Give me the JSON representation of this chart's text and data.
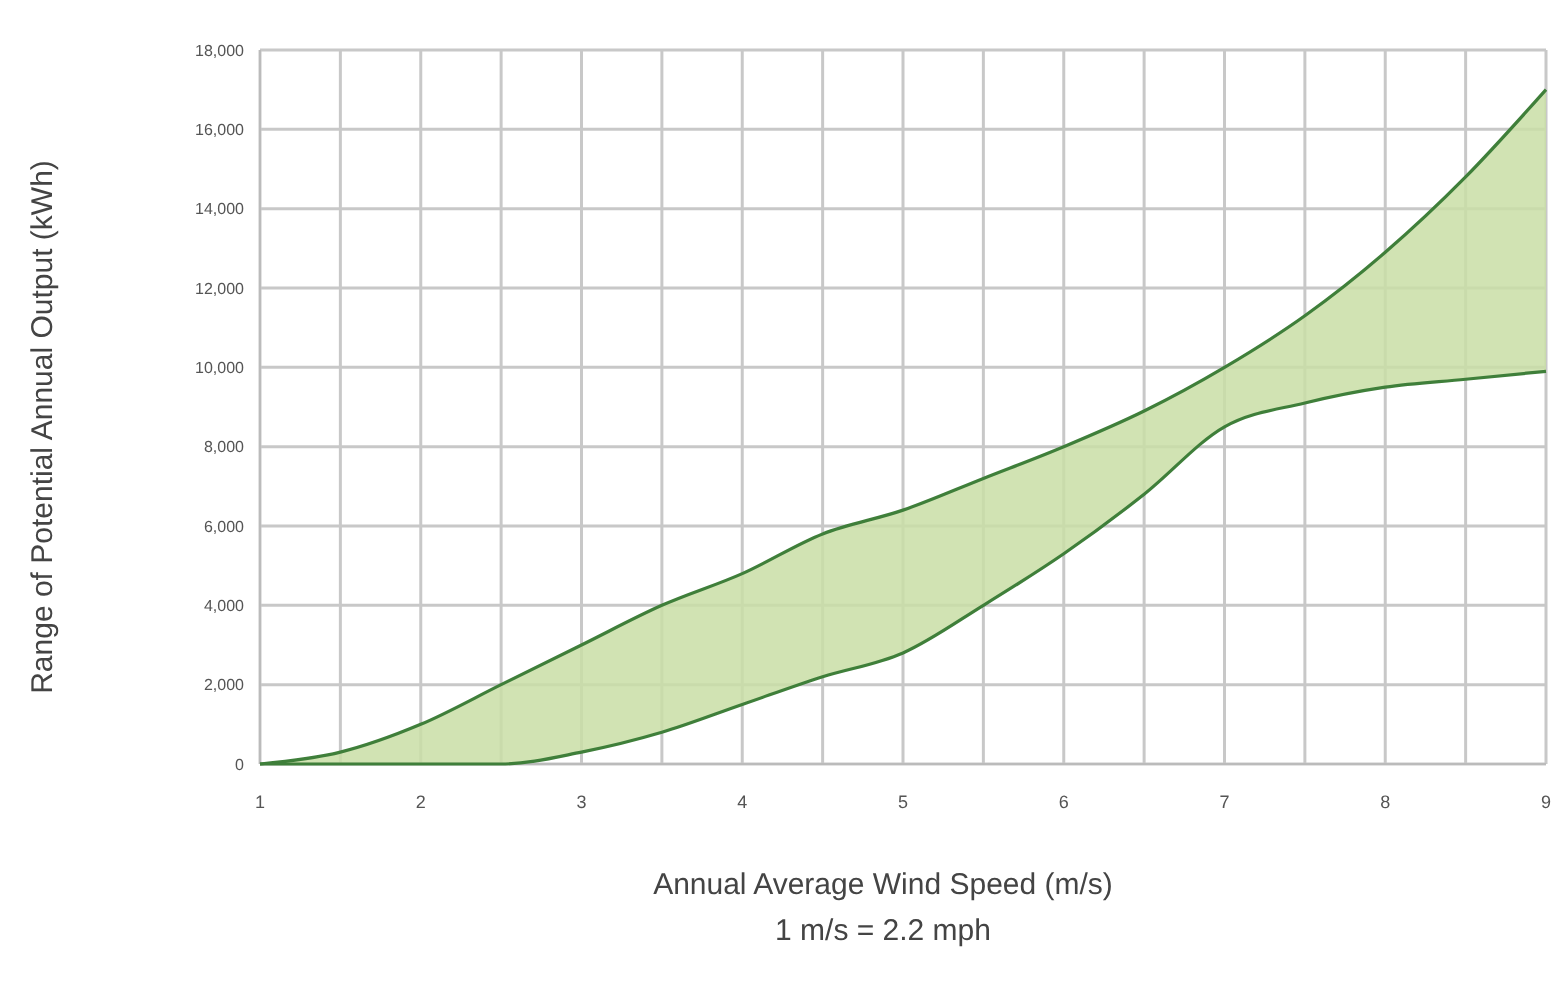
{
  "chart_data": {
    "type": "line",
    "xlabel": "Annual Average Wind Speed (m/s)",
    "ylabel": "Range of Potential Annual Output (kWh)",
    "annotations": [
      "1 m/s = 2.2 mph"
    ],
    "x": [
      1,
      1.5,
      2,
      2.5,
      3,
      3.5,
      4,
      4.5,
      5,
      5.5,
      6,
      6.5,
      7,
      7.5,
      8,
      8.5,
      9
    ],
    "series": [
      {
        "color": "#3f7f3a",
        "values": [
          0,
          300,
          1000,
          2000,
          3000,
          4000,
          4800,
          5800,
          6400,
          7200,
          8000,
          8900,
          10000,
          11300,
          12900,
          14800,
          17000
        ],
        "lower": [
          0,
          0,
          0,
          0,
          300,
          800,
          1500,
          2200,
          2800,
          4000,
          5300,
          6800,
          8500,
          9100,
          9500,
          9700,
          9900
        ],
        "upper": [
          0,
          300,
          1000,
          2000,
          3000,
          4000,
          4800,
          5800,
          6400,
          7200,
          8000,
          8900,
          10000,
          11300,
          12900,
          14800,
          17000
        ]
      },
      {
        "color": "#3f7f3a",
        "values": [
          0,
          0,
          0,
          0,
          300,
          800,
          1500,
          2200,
          2800,
          4000,
          5300,
          6800,
          8500,
          9100,
          9500,
          9700,
          9900
        ]
      }
    ],
    "xlim": [
      1,
      9
    ],
    "xticks": [
      1,
      2,
      3,
      4,
      5,
      6,
      7,
      8,
      9
    ],
    "ylim": [
      0,
      18000
    ],
    "yticks": [
      {
        "value": 0,
        "label": "0"
      },
      {
        "value": 2000,
        "label": "2,000"
      },
      {
        "value": 4000,
        "label": "4,000"
      },
      {
        "value": 6000,
        "label": "6,000"
      },
      {
        "value": 8000,
        "label": "8,000"
      },
      {
        "value": 10000,
        "label": "10,000"
      },
      {
        "value": 12000,
        "label": "12,000"
      },
      {
        "value": 14000,
        "label": "14,000"
      },
      {
        "value": 16000,
        "label": "16,000"
      },
      {
        "value": 18000,
        "label": "18,000"
      }
    ],
    "grid": true,
    "marker": "none",
    "line_style": "solid"
  }
}
